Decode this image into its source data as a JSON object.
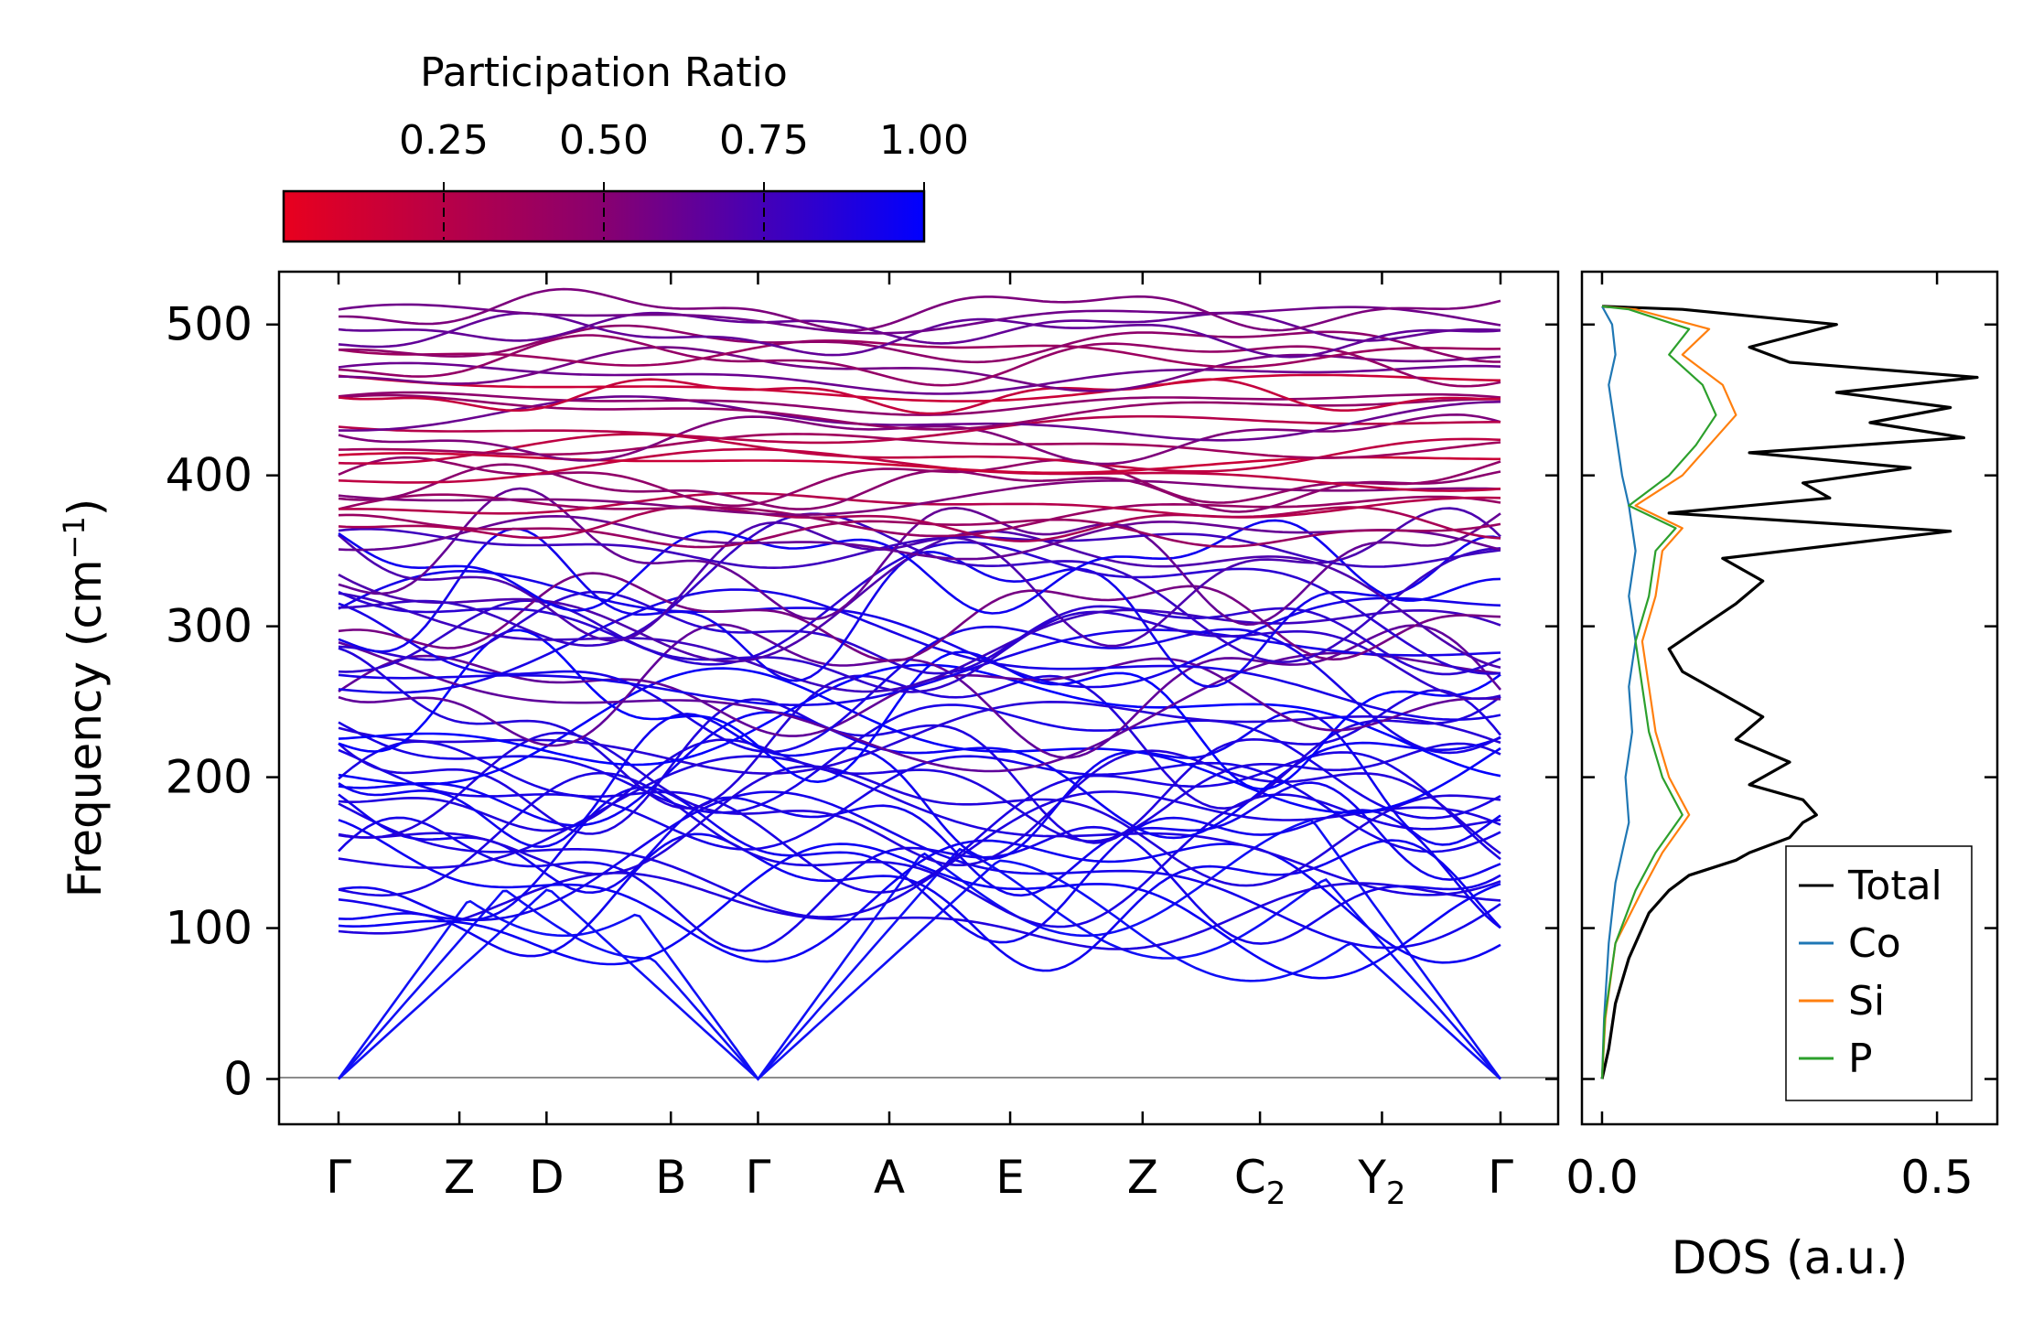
{
  "chart_data": [
    {
      "type": "line",
      "subtype": "phonon-band-structure",
      "ylabel": "Frequency (cm",
      "ylabel_sup": "−1",
      "ylabel_close": ")",
      "ylim": [
        -30,
        535
      ],
      "yticks": [
        "0",
        "100",
        "200",
        "300",
        "400",
        "500"
      ],
      "ytick_values": [
        0,
        100,
        200,
        300,
        400,
        500
      ],
      "kpoints": [
        {
          "label": "Γ",
          "sub": "",
          "x": 0.0
        },
        {
          "label": "Z",
          "sub": "",
          "x": 0.104
        },
        {
          "label": "D",
          "sub": "",
          "x": 0.179
        },
        {
          "label": "B",
          "sub": "",
          "x": 0.286
        },
        {
          "label": "Γ",
          "sub": "",
          "x": 0.361
        },
        {
          "label": "A",
          "sub": "",
          "x": 0.474
        },
        {
          "label": "E",
          "sub": "",
          "x": 0.578
        },
        {
          "label": "Z",
          "sub": "",
          "x": 0.692
        },
        {
          "label": "C",
          "sub": "2",
          "x": 0.793
        },
        {
          "label": "Y",
          "sub": "2",
          "x": 0.898
        },
        {
          "label": "Γ",
          "sub": "",
          "x": 1.0
        }
      ],
      "branches_summary": {
        "acoustic": "three branches from 0 at Γ points rising to ~100–170",
        "optical_range": [
          110,
          512
        ],
        "flat_high_band_top": 510
      }
    },
    {
      "type": "colorbar",
      "title": "Participation Ratio",
      "ticks": [
        "0.25",
        "0.50",
        "0.75",
        "1.00"
      ],
      "tick_values": [
        0.25,
        0.5,
        0.75,
        1.0
      ],
      "range": [
        0.0,
        1.0
      ],
      "color_low": "#e8001e",
      "color_mid": "#880070",
      "color_high": "#0000ff"
    },
    {
      "type": "line",
      "subtype": "density-of-states",
      "xlabel": "DOS (a.u.)",
      "xticks": [
        "0.0",
        "0.5"
      ],
      "xtick_values": [
        0.0,
        0.5
      ],
      "xlim": [
        -0.03,
        0.59
      ],
      "series": [
        {
          "name": "Total",
          "color": "#000000",
          "points": [
            [
              0,
              0
            ],
            [
              0.01,
              20
            ],
            [
              0.02,
              50
            ],
            [
              0.04,
              80
            ],
            [
              0.07,
              110
            ],
            [
              0.1,
              125
            ],
            [
              0.13,
              135
            ],
            [
              0.2,
              145
            ],
            [
              0.22,
              150
            ],
            [
              0.28,
              160
            ],
            [
              0.3,
              170
            ],
            [
              0.32,
              175
            ],
            [
              0.3,
              185
            ],
            [
              0.22,
              195
            ],
            [
              0.28,
              210
            ],
            [
              0.2,
              225
            ],
            [
              0.24,
              240
            ],
            [
              0.18,
              255
            ],
            [
              0.12,
              270
            ],
            [
              0.1,
              285
            ],
            [
              0.15,
              300
            ],
            [
              0.2,
              315
            ],
            [
              0.24,
              330
            ],
            [
              0.18,
              345
            ],
            [
              0.52,
              363
            ],
            [
              0.1,
              375
            ],
            [
              0.34,
              385
            ],
            [
              0.3,
              395
            ],
            [
              0.46,
              405
            ],
            [
              0.22,
              415
            ],
            [
              0.54,
              425
            ],
            [
              0.4,
              435
            ],
            [
              0.52,
              445
            ],
            [
              0.35,
              455
            ],
            [
              0.56,
              465
            ],
            [
              0.28,
              475
            ],
            [
              0.22,
              485
            ],
            [
              0.35,
              500
            ],
            [
              0.12,
              510
            ],
            [
              0.0,
              512
            ]
          ]
        },
        {
          "name": "Co",
          "color": "#1f77b4",
          "points": [
            [
              0,
              0
            ],
            [
              0.003,
              40
            ],
            [
              0.01,
              90
            ],
            [
              0.02,
              130
            ],
            [
              0.03,
              150
            ],
            [
              0.04,
              170
            ],
            [
              0.035,
              200
            ],
            [
              0.045,
              230
            ],
            [
              0.04,
              260
            ],
            [
              0.05,
              290
            ],
            [
              0.04,
              320
            ],
            [
              0.05,
              350
            ],
            [
              0.04,
              380
            ],
            [
              0.03,
              400
            ],
            [
              0.02,
              430
            ],
            [
              0.01,
              460
            ],
            [
              0.02,
              480
            ],
            [
              0.015,
              500
            ],
            [
              0.0,
              512
            ]
          ]
        },
        {
          "name": "Si",
          "color": "#ff7f0e",
          "points": [
            [
              0,
              0
            ],
            [
              0.005,
              40
            ],
            [
              0.02,
              90
            ],
            [
              0.06,
              125
            ],
            [
              0.09,
              150
            ],
            [
              0.13,
              175
            ],
            [
              0.1,
              200
            ],
            [
              0.08,
              230
            ],
            [
              0.07,
              260
            ],
            [
              0.06,
              290
            ],
            [
              0.08,
              320
            ],
            [
              0.09,
              350
            ],
            [
              0.12,
              365
            ],
            [
              0.05,
              380
            ],
            [
              0.12,
              400
            ],
            [
              0.16,
              420
            ],
            [
              0.2,
              440
            ],
            [
              0.18,
              460
            ],
            [
              0.12,
              480
            ],
            [
              0.16,
              497
            ],
            [
              0.05,
              510
            ],
            [
              0.0,
              512
            ]
          ]
        },
        {
          "name": "P",
          "color": "#2ca02c",
          "points": [
            [
              0,
              0
            ],
            [
              0.004,
              40
            ],
            [
              0.02,
              90
            ],
            [
              0.05,
              125
            ],
            [
              0.08,
              150
            ],
            [
              0.12,
              175
            ],
            [
              0.09,
              200
            ],
            [
              0.07,
              230
            ],
            [
              0.06,
              260
            ],
            [
              0.05,
              290
            ],
            [
              0.07,
              320
            ],
            [
              0.08,
              350
            ],
            [
              0.11,
              365
            ],
            [
              0.04,
              380
            ],
            [
              0.1,
              400
            ],
            [
              0.14,
              420
            ],
            [
              0.17,
              440
            ],
            [
              0.15,
              460
            ],
            [
              0.1,
              480
            ],
            [
              0.13,
              497
            ],
            [
              0.04,
              510
            ],
            [
              0.0,
              512
            ]
          ]
        }
      ],
      "legend": {
        "position": "bottom-right",
        "entries": [
          "Total",
          "Co",
          "Si",
          "P"
        ]
      }
    }
  ]
}
